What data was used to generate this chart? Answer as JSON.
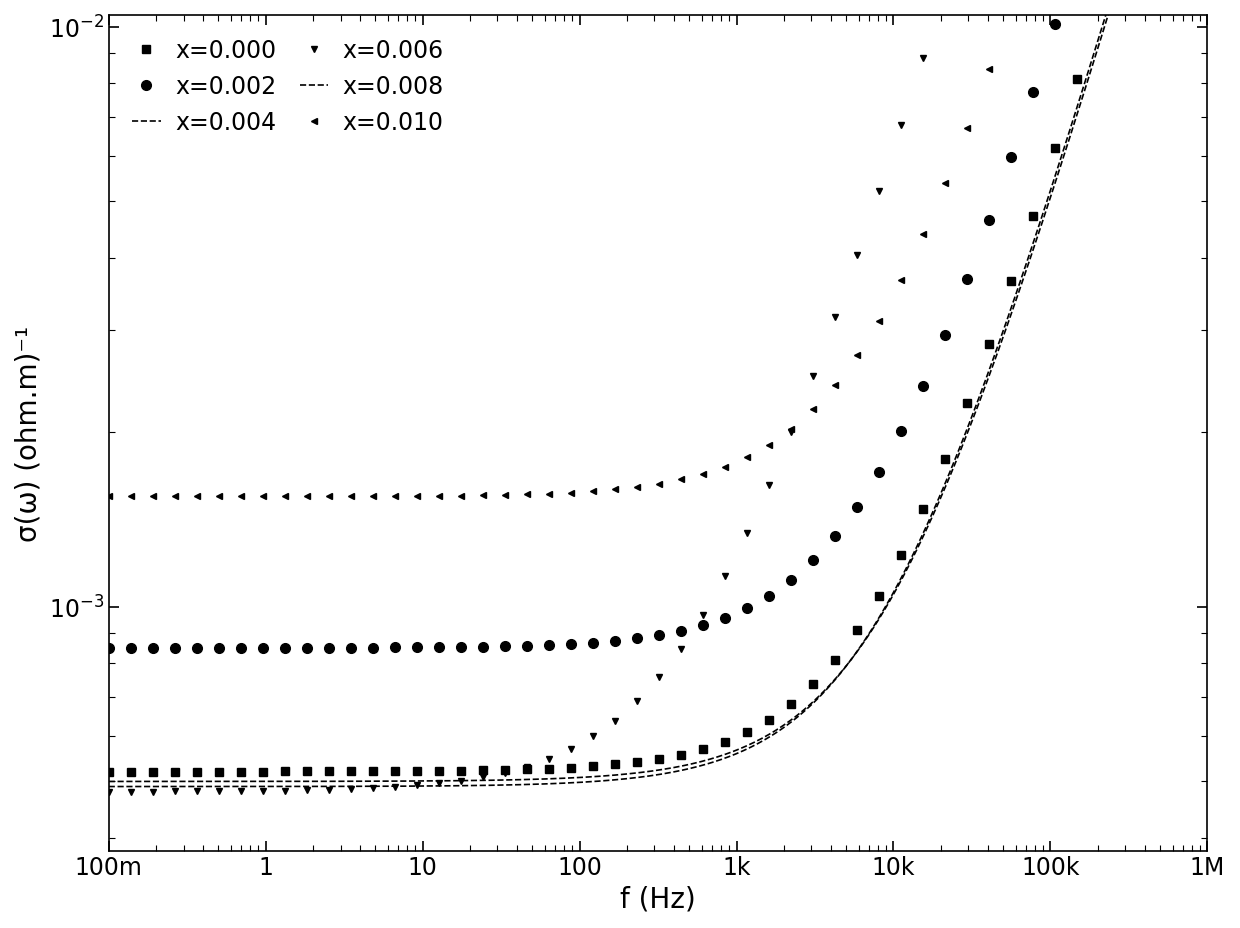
{
  "xlabel": "f (Hz)",
  "ylabel": "σ(ω) (ohm.m)⁻¹",
  "xmin": 0.1,
  "xmax": 1000000,
  "ymin": 0.00038,
  "ymax": 0.0105,
  "xtick_labels": [
    "100m",
    "1",
    "10",
    "100",
    "1k",
    "10k",
    "100k",
    "1M"
  ],
  "xtick_vals": [
    0.1,
    1,
    10,
    100,
    1000,
    10000,
    100000,
    1000000
  ],
  "series": [
    {
      "label": "x=0.000",
      "marker": "s",
      "sigma_dc": 0.00052,
      "f_hop": 8000,
      "n": 0.92,
      "ms": 6,
      "show_marker": true,
      "linestyle": "none"
    },
    {
      "label": "x=0.002",
      "marker": "o",
      "sigma_dc": 0.00085,
      "f_hop": 8000,
      "n": 0.92,
      "ms": 7,
      "show_marker": true,
      "linestyle": "none"
    },
    {
      "label": "x=0.004",
      "marker": "s",
      "sigma_dc": 0.0005,
      "f_hop": 9000,
      "n": 0.92,
      "ms": 4,
      "show_marker": false,
      "linestyle": "--"
    },
    {
      "label": "x=0.006",
      "marker": "v",
      "sigma_dc": 0.00048,
      "f_hop": 600,
      "n": 0.88,
      "ms": 5,
      "show_marker": true,
      "linestyle": "none"
    },
    {
      "label": "x=0.008",
      "marker": "s",
      "sigma_dc": 0.00049,
      "f_hop": 8500,
      "n": 0.92,
      "ms": 4,
      "show_marker": false,
      "linestyle": "--"
    },
    {
      "label": "x=0.010",
      "marker": "<",
      "sigma_dc": 0.00155,
      "f_hop": 8000,
      "n": 0.92,
      "ms": 5,
      "show_marker": true,
      "linestyle": "none"
    }
  ],
  "color": "#000000",
  "background_color": "#ffffff",
  "tick_fontsize": 17,
  "axis_fontsize": 20,
  "legend_fontsize": 17,
  "n_freq_points": 600,
  "markers_per_curve": 50
}
